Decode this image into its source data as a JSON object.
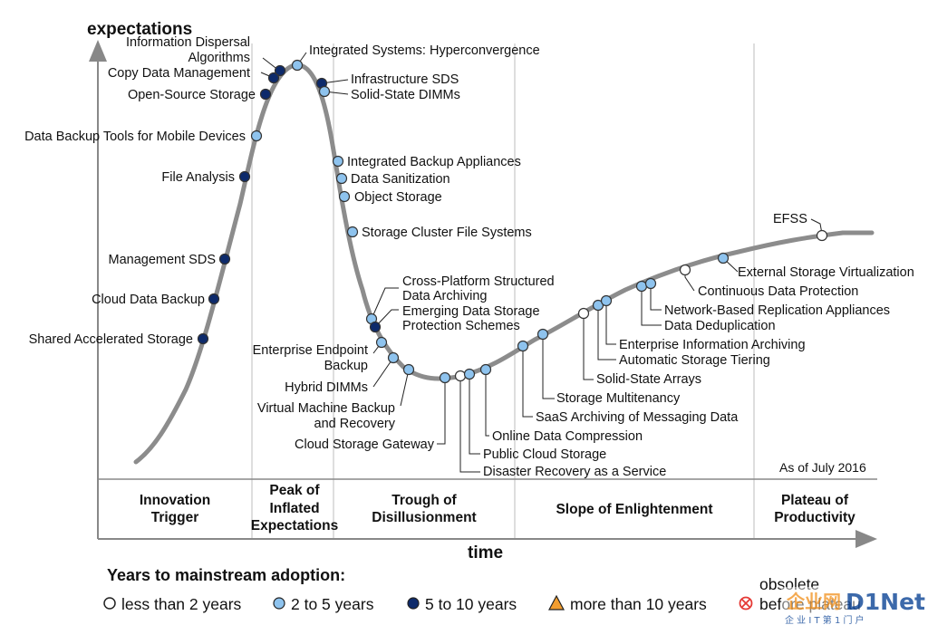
{
  "axes": {
    "y_label": "expectations",
    "x_label": "time"
  },
  "as_of": "As of July 2016",
  "phases": [
    {
      "name": "innovation-trigger",
      "lines": [
        "Innovation",
        "Trigger"
      ]
    },
    {
      "name": "peak-of-inflated-expectations",
      "lines": [
        "Peak of",
        "Inflated",
        "Expectations"
      ]
    },
    {
      "name": "trough-of-disillusionment",
      "lines": [
        "Trough of",
        "Disillusionment"
      ]
    },
    {
      "name": "slope-of-enlightenment",
      "lines": [
        "Slope of Enlightenment"
      ]
    },
    {
      "name": "plateau-of-productivity",
      "lines": [
        "Plateau of",
        "Productivity"
      ]
    }
  ],
  "legend": {
    "title": "Years to mainstream adoption:",
    "items": [
      {
        "key": "lt2",
        "label": "less than 2 years",
        "color": "#ffffff"
      },
      {
        "key": "2to5",
        "label": "2 to 5 years",
        "color": "#8ec3ee"
      },
      {
        "key": "5to10",
        "label": "5 to 10 years",
        "color": "#0d2a6b"
      },
      {
        "key": "gt10",
        "label": "more than 10 years",
        "color": "#f29d2f"
      },
      {
        "key": "obsolete",
        "label": "obsolete before plateau",
        "color": "#e53935"
      }
    ]
  },
  "technologies": [
    {
      "name": "Shared Accelerated Storage",
      "category": "5to10"
    },
    {
      "name": "Cloud Data Backup",
      "category": "5to10"
    },
    {
      "name": "Management SDS",
      "category": "5to10"
    },
    {
      "name": "File Analysis",
      "category": "5to10"
    },
    {
      "name": "Data Backup Tools for Mobile Devices",
      "category": "2to5"
    },
    {
      "name": "Open-Source Storage",
      "category": "5to10"
    },
    {
      "name": "Copy Data Management",
      "category": "5to10"
    },
    {
      "name": "Information Dispersal Algorithms",
      "category": "5to10"
    },
    {
      "name": "Integrated Systems: Hyperconvergence",
      "category": "2to5"
    },
    {
      "name": "Infrastructure SDS",
      "category": "5to10"
    },
    {
      "name": "Solid-State DIMMs",
      "category": "2to5"
    },
    {
      "name": "Integrated Backup Appliances",
      "category": "2to5"
    },
    {
      "name": "Data Sanitization",
      "category": "2to5"
    },
    {
      "name": "Object Storage",
      "category": "2to5"
    },
    {
      "name": "Storage Cluster File Systems",
      "category": "2to5"
    },
    {
      "name": "Cross-Platform Structured Data Archiving",
      "category": "2to5"
    },
    {
      "name": "Emerging Data Storage Protection Schemes",
      "category": "5to10"
    },
    {
      "name": "Enterprise Endpoint Backup",
      "category": "2to5"
    },
    {
      "name": "Hybrid DIMMs",
      "category": "2to5"
    },
    {
      "name": "Virtual Machine Backup and Recovery",
      "category": "2to5"
    },
    {
      "name": "Cloud Storage Gateway",
      "category": "2to5"
    },
    {
      "name": "Disaster Recovery as a Service",
      "category": "lt2"
    },
    {
      "name": "Public Cloud Storage",
      "category": "2to5"
    },
    {
      "name": "Online Data Compression",
      "category": "2to5"
    },
    {
      "name": "SaaS Archiving of Messaging Data",
      "category": "2to5"
    },
    {
      "name": "Storage Multitenancy",
      "category": "2to5"
    },
    {
      "name": "Solid-State Arrays",
      "category": "lt2"
    },
    {
      "name": "Automatic Storage Tiering",
      "category": "2to5"
    },
    {
      "name": "Enterprise Information Archiving",
      "category": "2to5"
    },
    {
      "name": "Data Deduplication",
      "category": "2to5"
    },
    {
      "name": "Network-Based Replication Appliances",
      "category": "2to5"
    },
    {
      "name": "Continuous Data Protection",
      "category": "lt2"
    },
    {
      "name": "External Storage Virtualization",
      "category": "2to5"
    },
    {
      "name": "EFSS",
      "category": "lt2"
    }
  ],
  "watermark": {
    "brand_a": "企业网",
    "brand_b": "D1Net",
    "sub": "企 业 I T 第 1 门 户"
  }
}
